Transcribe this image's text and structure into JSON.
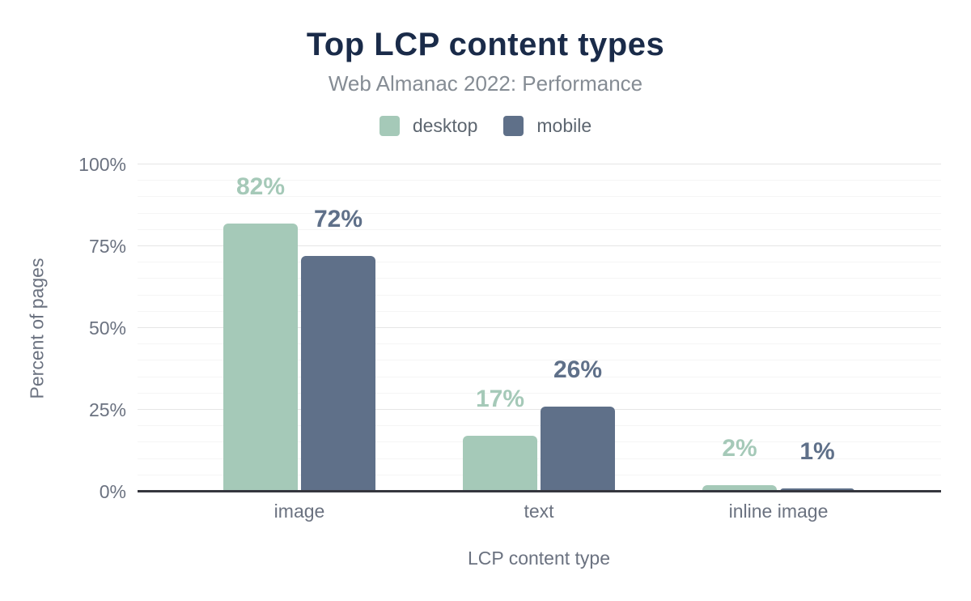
{
  "header": {
    "title": "Top LCP content types",
    "subtitle": "Web Almanac 2022: Performance"
  },
  "legend": {
    "items": [
      {
        "label": "desktop",
        "color": "#a5c9b8"
      },
      {
        "label": "mobile",
        "color": "#5f7089"
      }
    ]
  },
  "chart_data": {
    "type": "bar",
    "title": "Top LCP content types",
    "subtitle": "Web Almanac 2022: Performance",
    "categories": [
      "image",
      "text",
      "inline image"
    ],
    "series": [
      {
        "name": "desktop",
        "color": "#a5c9b8",
        "values": [
          82,
          17,
          2
        ],
        "labels": [
          "82%",
          "17%",
          "2%"
        ]
      },
      {
        "name": "mobile",
        "color": "#5f7089",
        "values": [
          72,
          26,
          1
        ],
        "labels": [
          "72%",
          "26%",
          "1%"
        ]
      }
    ],
    "xlabel": "LCP content type",
    "ylabel": "Percent of pages",
    "ylim": [
      0,
      100
    ],
    "yticks": [
      {
        "value": 0,
        "label": "0%"
      },
      {
        "value": 25,
        "label": "25%"
      },
      {
        "value": 50,
        "label": "50%"
      },
      {
        "value": 75,
        "label": "75%"
      },
      {
        "value": 100,
        "label": "100%"
      }
    ],
    "grid": {
      "minor_step": 5,
      "major_step": 25,
      "visible": true
    },
    "legend_position": "top"
  },
  "colors": {
    "title": "#1a2b49",
    "subtitle": "#858c94",
    "axis_text": "#6b7280",
    "axis_line": "#35363e",
    "grid_major": "#e6e6e6",
    "grid_minor": "#f5f5f5",
    "background": "#ffffff"
  }
}
